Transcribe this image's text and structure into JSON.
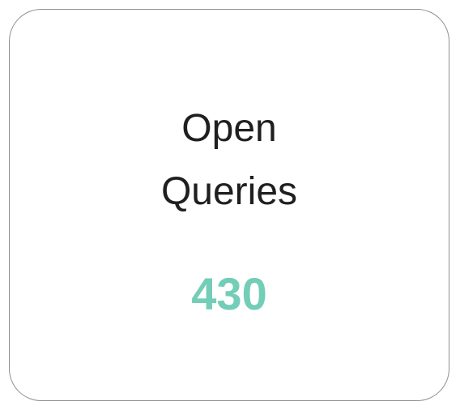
{
  "card": {
    "title_line1": "Open",
    "title_line2": "Queries",
    "value": "430",
    "value_color": "#73cdb7"
  }
}
